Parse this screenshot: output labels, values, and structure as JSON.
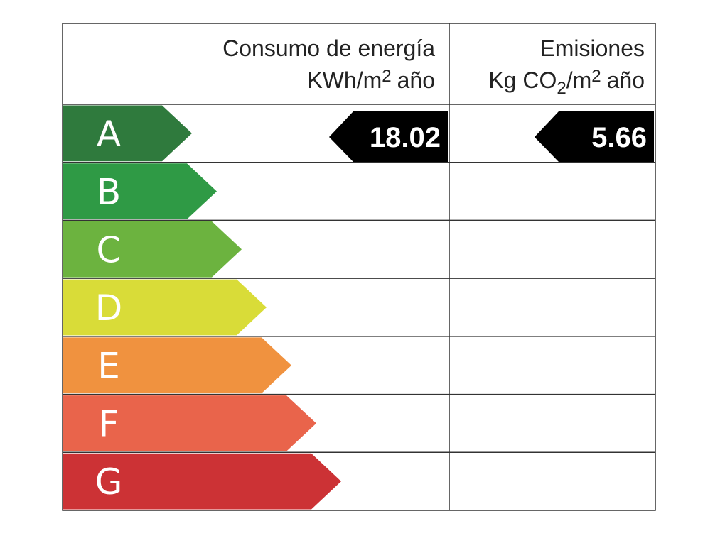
{
  "header": {
    "energy": {
      "title": "Consumo de energía",
      "unit": [
        "KWh/m",
        "2",
        "año"
      ]
    },
    "emissions": {
      "title": "Emisiones",
      "unit": [
        "Kg CO",
        "2",
        "/m",
        "2",
        "año"
      ]
    }
  },
  "rows": [
    {
      "letter": "A",
      "color": "#2f7a3d"
    },
    {
      "letter": "B",
      "color": "#2f9a45"
    },
    {
      "letter": "C",
      "color": "#6cb33f"
    },
    {
      "letter": "D",
      "color": "#d9dc38"
    },
    {
      "letter": "E",
      "color": "#f0923f"
    },
    {
      "letter": "F",
      "color": "#e9644b"
    },
    {
      "letter": "G",
      "color": "#cc3235"
    }
  ],
  "rating": {
    "energy": "18.02",
    "emissions": "5.66"
  }
}
